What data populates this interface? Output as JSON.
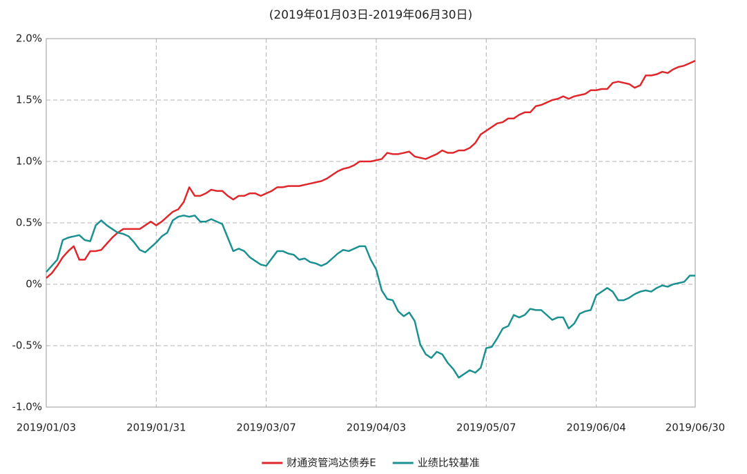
{
  "chart_data": {
    "type": "line",
    "title": "(2019年01月03日-2019年06月30日)",
    "categories": [
      "2019/01/03",
      null,
      null,
      null,
      null,
      null,
      null,
      null,
      null,
      null,
      null,
      null,
      null,
      null,
      null,
      null,
      null,
      null,
      null,
      null,
      "2019/01/31",
      null,
      null,
      null,
      null,
      null,
      null,
      null,
      null,
      null,
      null,
      null,
      null,
      null,
      null,
      null,
      null,
      null,
      null,
      null,
      "2019/03/07",
      null,
      null,
      null,
      null,
      null,
      null,
      null,
      null,
      null,
      null,
      null,
      null,
      null,
      null,
      null,
      null,
      null,
      null,
      null,
      "2019/04/03",
      null,
      null,
      null,
      null,
      null,
      null,
      null,
      null,
      null,
      null,
      null,
      null,
      null,
      null,
      null,
      null,
      null,
      null,
      null,
      "2019/05/07",
      null,
      null,
      null,
      null,
      null,
      null,
      null,
      null,
      null,
      null,
      null,
      null,
      null,
      null,
      null,
      null,
      null,
      null,
      null,
      "2019/06/04",
      null,
      null,
      null,
      null,
      null,
      null,
      null,
      null,
      null,
      null,
      null,
      null,
      null,
      null,
      null,
      null,
      null,
      "2019/06/30"
    ],
    "series": [
      {
        "name": "财通资管鸿达债券E",
        "color": "#e0262b",
        "values": [
          0.05,
          0.09,
          0.15,
          0.22,
          0.27,
          0.31,
          0.2,
          0.2,
          0.27,
          0.27,
          0.28,
          0.33,
          0.38,
          0.42,
          0.45,
          0.45,
          0.45,
          0.45,
          0.48,
          0.51,
          0.48,
          0.51,
          0.55,
          0.59,
          0.61,
          0.67,
          0.79,
          0.72,
          0.72,
          0.74,
          0.77,
          0.76,
          0.76,
          0.72,
          0.69,
          0.72,
          0.72,
          0.74,
          0.74,
          0.72,
          0.74,
          0.76,
          0.79,
          0.79,
          0.8,
          0.8,
          0.8,
          0.81,
          0.82,
          0.83,
          0.84,
          0.86,
          0.89,
          0.92,
          0.94,
          0.95,
          0.97,
          1.0,
          1.0,
          1.0,
          1.01,
          1.02,
          1.07,
          1.06,
          1.06,
          1.07,
          1.08,
          1.04,
          1.03,
          1.02,
          1.04,
          1.06,
          1.09,
          1.07,
          1.07,
          1.09,
          1.09,
          1.11,
          1.15,
          1.22,
          1.25,
          1.28,
          1.31,
          1.32,
          1.35,
          1.35,
          1.38,
          1.4,
          1.4,
          1.45,
          1.46,
          1.48,
          1.5,
          1.51,
          1.53,
          1.51,
          1.53,
          1.54,
          1.55,
          1.58,
          1.58,
          1.59,
          1.59,
          1.64,
          1.65,
          1.64,
          1.63,
          1.6,
          1.62,
          1.7,
          1.7,
          1.71,
          1.73,
          1.72,
          1.75,
          1.77,
          1.78,
          1.8,
          1.82
        ]
      },
      {
        "name": "业绩比较基准",
        "color": "#1a9090",
        "values": [
          0.1,
          0.15,
          0.2,
          0.36,
          0.38,
          0.39,
          0.4,
          0.36,
          0.35,
          0.48,
          0.52,
          0.48,
          0.45,
          0.42,
          0.41,
          0.39,
          0.34,
          0.28,
          0.26,
          0.3,
          0.34,
          0.39,
          0.42,
          0.52,
          0.55,
          0.56,
          0.55,
          0.56,
          0.51,
          0.51,
          0.53,
          0.51,
          0.49,
          0.38,
          0.27,
          0.29,
          0.27,
          0.22,
          0.19,
          0.16,
          0.15,
          0.21,
          0.27,
          0.27,
          0.25,
          0.24,
          0.2,
          0.21,
          0.18,
          0.17,
          0.15,
          0.17,
          0.21,
          0.25,
          0.28,
          0.27,
          0.29,
          0.31,
          0.31,
          0.2,
          0.12,
          -0.05,
          -0.12,
          -0.13,
          -0.22,
          -0.26,
          -0.23,
          -0.3,
          -0.49,
          -0.57,
          -0.6,
          -0.55,
          -0.57,
          -0.64,
          -0.69,
          -0.76,
          -0.73,
          -0.7,
          -0.72,
          -0.68,
          -0.52,
          -0.51,
          -0.44,
          -0.36,
          -0.34,
          -0.25,
          -0.27,
          -0.25,
          -0.2,
          -0.21,
          -0.21,
          -0.25,
          -0.29,
          -0.27,
          -0.27,
          -0.36,
          -0.32,
          -0.24,
          -0.22,
          -0.21,
          -0.09,
          -0.06,
          -0.03,
          -0.06,
          -0.13,
          -0.13,
          -0.11,
          -0.08,
          -0.06,
          -0.05,
          -0.06,
          -0.03,
          -0.01,
          -0.02,
          0,
          0.01,
          0.02,
          0.07,
          0.07
        ]
      }
    ],
    "ylim": [
      -1,
      2
    ],
    "yticks": [
      {
        "value": -1,
        "label": "-1.0%"
      },
      {
        "value": -0.5,
        "label": "-0.5%"
      },
      {
        "value": 0,
        "label": "0%"
      },
      {
        "value": 0.5,
        "label": "0.5%"
      },
      {
        "value": 1,
        "label": "1.0%"
      },
      {
        "value": 1.5,
        "label": "1.5%"
      },
      {
        "value": 2,
        "label": "2.0%"
      }
    ],
    "grid": true,
    "legend": "bottom"
  }
}
